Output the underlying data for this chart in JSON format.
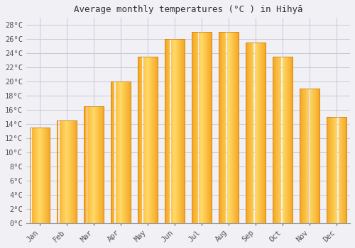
{
  "title": "Average monthly temperatures (°C ) in Hihyā",
  "months": [
    "Jan",
    "Feb",
    "Mar",
    "Apr",
    "May",
    "Jun",
    "Jul",
    "Aug",
    "Sep",
    "Oct",
    "Nov",
    "Dec"
  ],
  "values": [
    13.5,
    14.5,
    16.5,
    20.0,
    23.5,
    26.0,
    27.0,
    27.0,
    25.5,
    23.5,
    19.0,
    15.0
  ],
  "bar_color_left": "#F5A623",
  "bar_color_center": "#FFD966",
  "bar_color_right": "#E8900A",
  "background_color": "#F0F0F5",
  "plot_bg_color": "#F0F0F5",
  "grid_color": "#C8C8DC",
  "ylim": [
    0,
    29
  ],
  "yticks": [
    0,
    2,
    4,
    6,
    8,
    10,
    12,
    14,
    16,
    18,
    20,
    22,
    24,
    26,
    28
  ],
  "title_fontsize": 9,
  "tick_fontsize": 7.5,
  "font_family": "monospace"
}
